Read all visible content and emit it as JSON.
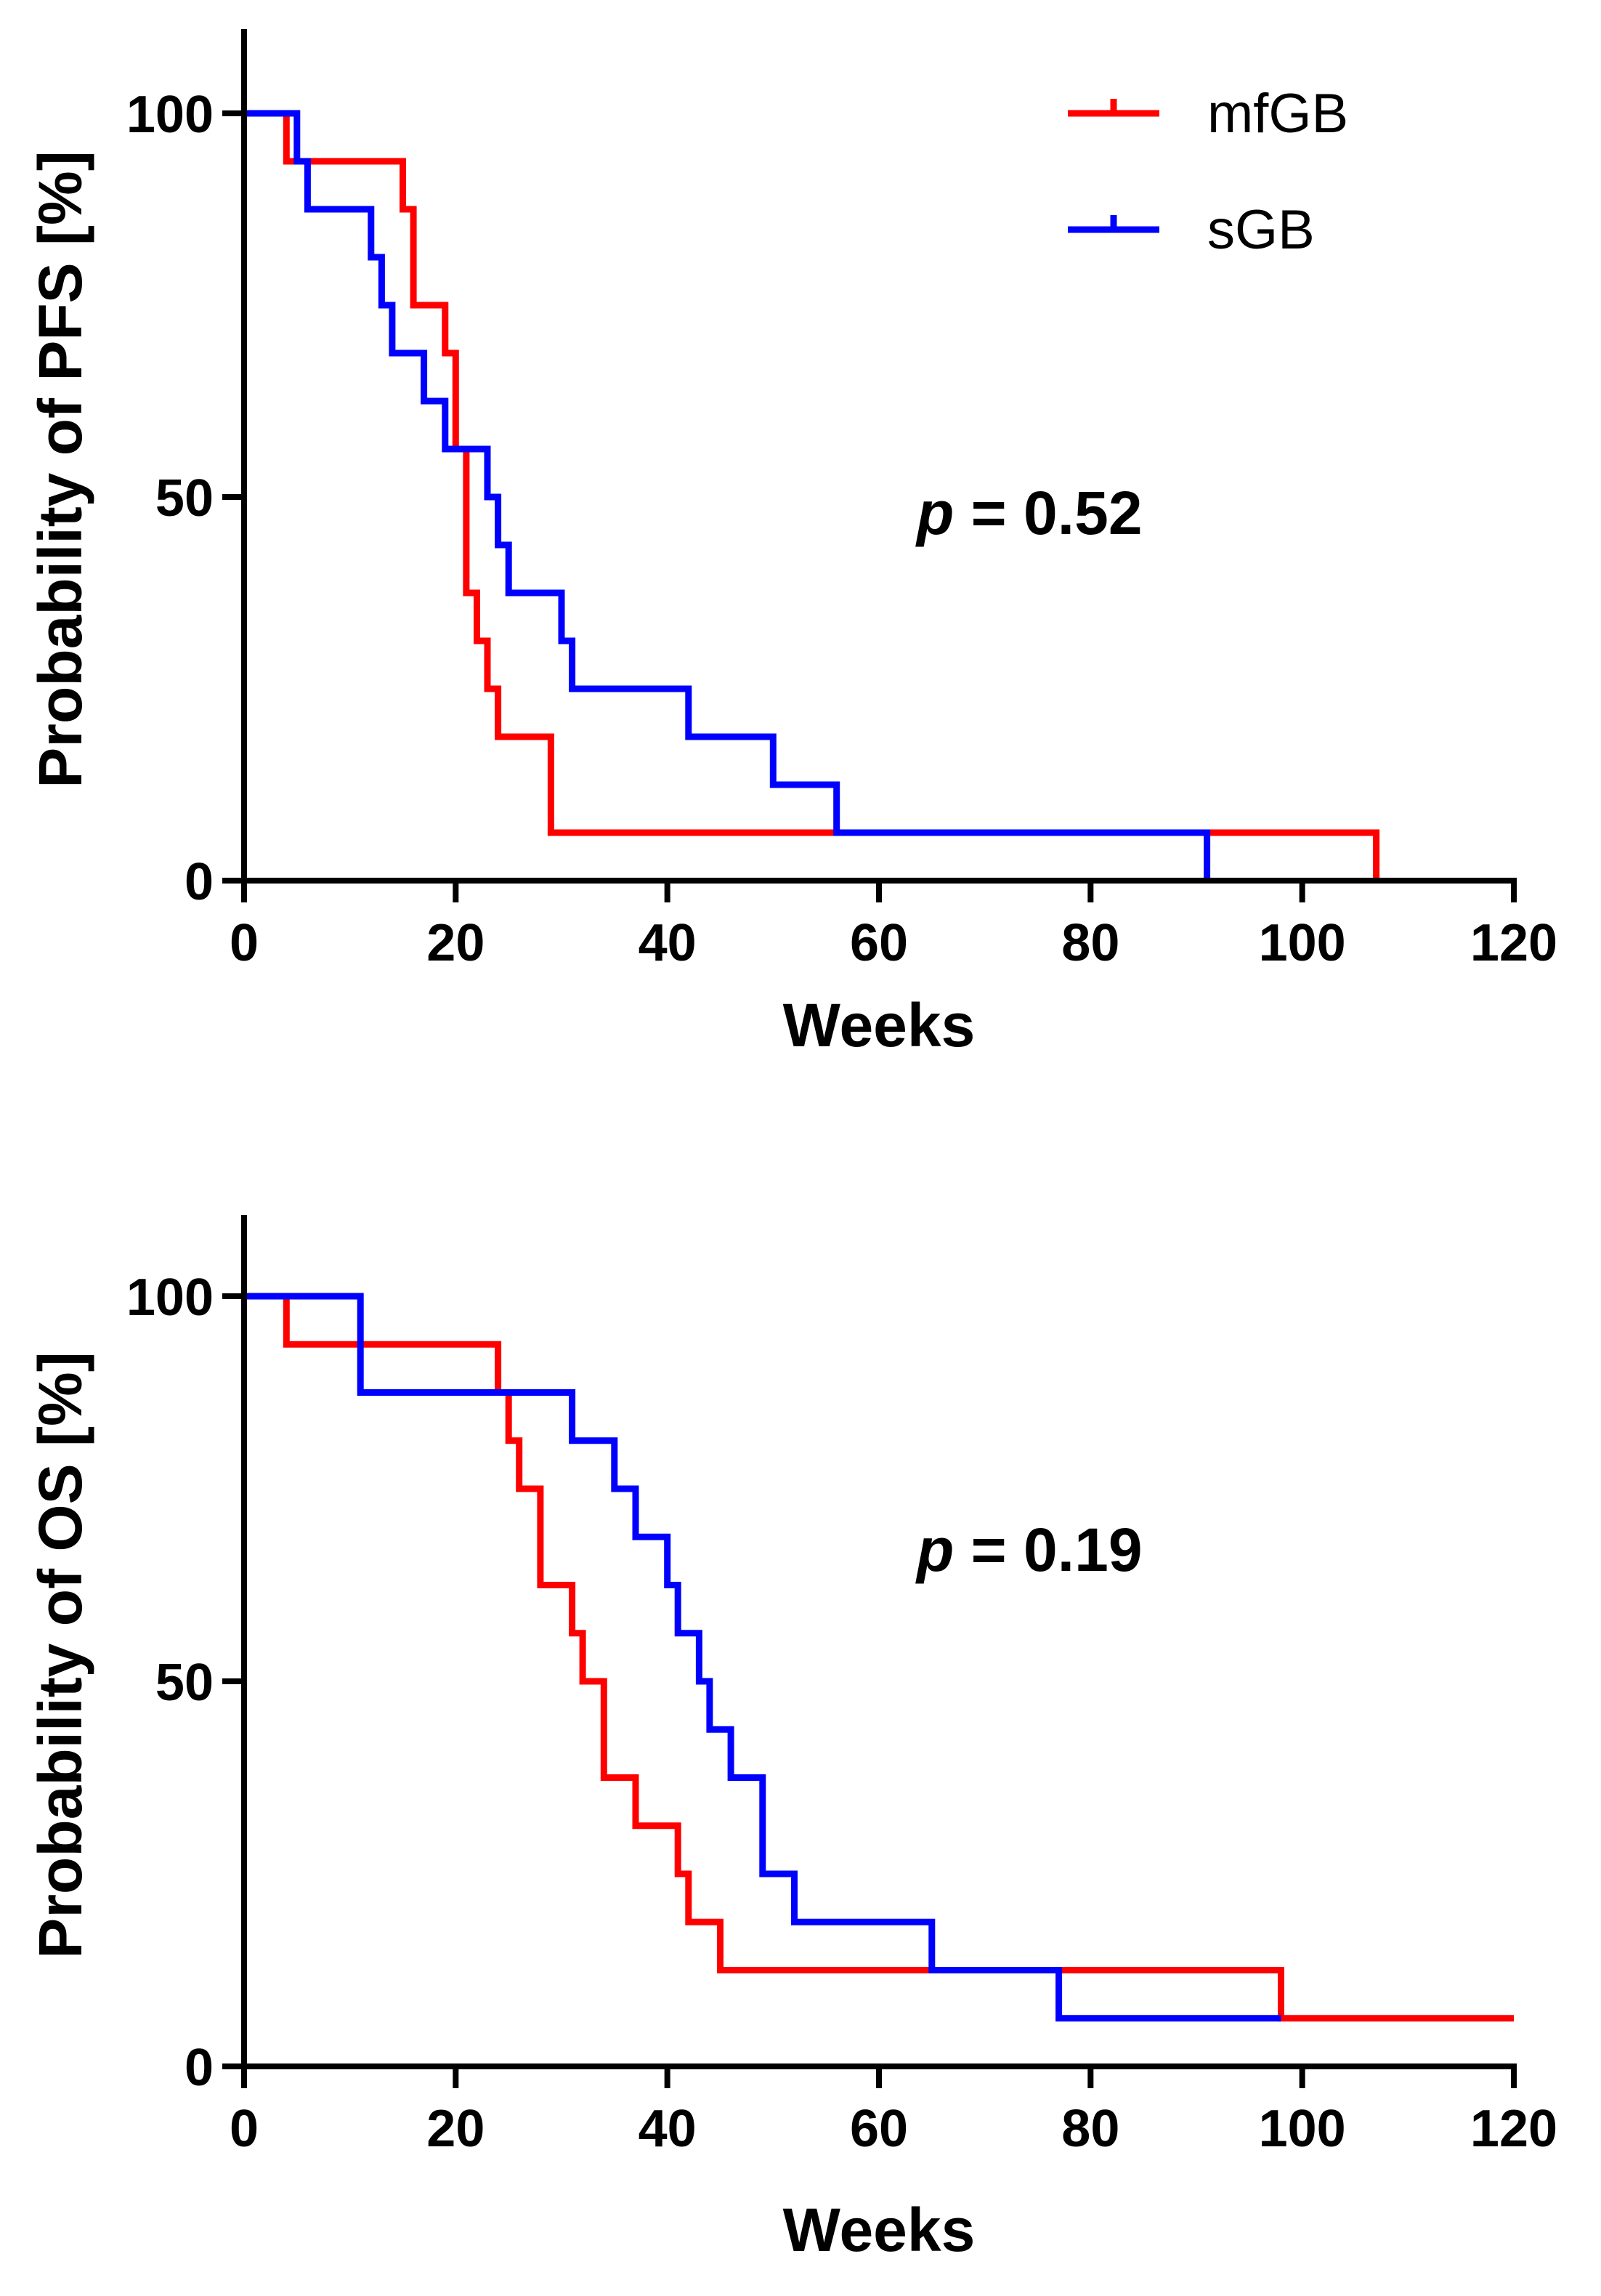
{
  "chart_data": [
    {
      "type": "line",
      "subtype": "kaplan-meier-step",
      "xlabel": "Weeks",
      "ylabel": "Probability of PFS [%]",
      "xlim": [
        0,
        120
      ],
      "ylim": [
        0,
        110
      ],
      "xticks": [
        0,
        20,
        40,
        60,
        80,
        100,
        120
      ],
      "yticks": [
        0,
        50,
        100
      ],
      "annotation": {
        "p": "p",
        "rest": " = 0.52"
      },
      "legend": {
        "position": "top-right",
        "entries": [
          "mfGB",
          "sGB"
        ]
      },
      "series": [
        {
          "name": "mfGB",
          "color": "#ff0000",
          "points": [
            [
              0,
              100
            ],
            [
              4,
              100
            ],
            [
              4,
              93.75
            ],
            [
              15,
              93.75
            ],
            [
              15,
              87.5
            ],
            [
              16,
              87.5
            ],
            [
              16,
              75
            ],
            [
              19,
              75
            ],
            [
              19,
              68.75
            ],
            [
              20,
              68.75
            ],
            [
              20,
              56.25
            ],
            [
              21,
              56.25
            ],
            [
              21,
              37.5
            ],
            [
              22,
              37.5
            ],
            [
              22,
              31.25
            ],
            [
              23,
              31.25
            ],
            [
              23,
              25
            ],
            [
              24,
              25
            ],
            [
              24,
              18.75
            ],
            [
              29,
              18.75
            ],
            [
              29,
              6.25
            ],
            [
              107,
              6.25
            ],
            [
              107,
              0
            ]
          ]
        },
        {
          "name": "sGB",
          "color": "#0000ff",
          "points": [
            [
              0,
              100
            ],
            [
              5,
              100
            ],
            [
              5,
              93.75
            ],
            [
              6,
              93.75
            ],
            [
              6,
              87.5
            ],
            [
              12,
              87.5
            ],
            [
              12,
              81.25
            ],
            [
              13,
              81.25
            ],
            [
              13,
              75
            ],
            [
              14,
              75
            ],
            [
              14,
              68.75
            ],
            [
              17,
              68.75
            ],
            [
              17,
              62.5
            ],
            [
              19,
              62.5
            ],
            [
              19,
              56.25
            ],
            [
              23,
              56.25
            ],
            [
              23,
              50
            ],
            [
              24,
              50
            ],
            [
              24,
              43.75
            ],
            [
              25,
              43.75
            ],
            [
              25,
              37.5
            ],
            [
              30,
              37.5
            ],
            [
              30,
              31.25
            ],
            [
              31,
              31.25
            ],
            [
              31,
              25
            ],
            [
              42,
              25
            ],
            [
              42,
              18.75
            ],
            [
              50,
              18.75
            ],
            [
              50,
              12.5
            ],
            [
              56,
              12.5
            ],
            [
              56,
              6.25
            ],
            [
              91,
              6.25
            ],
            [
              91,
              0
            ]
          ]
        }
      ]
    },
    {
      "type": "line",
      "subtype": "kaplan-meier-step",
      "xlabel": "Weeks",
      "ylabel": "Probability of OS [%]",
      "xlim": [
        0,
        120
      ],
      "ylim": [
        0,
        110
      ],
      "xticks": [
        0,
        20,
        40,
        60,
        80,
        100,
        120
      ],
      "yticks": [
        0,
        50,
        100
      ],
      "annotation": {
        "p": "p",
        "rest": " = 0.19"
      },
      "series": [
        {
          "name": "mfGB",
          "color": "#ff0000",
          "points": [
            [
              0,
              100
            ],
            [
              4,
              100
            ],
            [
              4,
              93.75
            ],
            [
              24,
              93.75
            ],
            [
              24,
              87.5
            ],
            [
              25,
              87.5
            ],
            [
              25,
              81.25
            ],
            [
              26,
              81.25
            ],
            [
              26,
              75
            ],
            [
              28,
              75
            ],
            [
              28,
              62.5
            ],
            [
              31,
              62.5
            ],
            [
              31,
              56.25
            ],
            [
              32,
              56.25
            ],
            [
              32,
              50
            ],
            [
              34,
              50
            ],
            [
              34,
              37.5
            ],
            [
              37,
              37.5
            ],
            [
              37,
              31.25
            ],
            [
              41,
              31.25
            ],
            [
              41,
              25
            ],
            [
              42,
              25
            ],
            [
              42,
              18.75
            ],
            [
              45,
              18.75
            ],
            [
              45,
              12.5
            ],
            [
              98,
              12.5
            ],
            [
              98,
              6.25
            ],
            [
              120,
              6.25
            ]
          ]
        },
        {
          "name": "sGB",
          "color": "#0000ff",
          "points": [
            [
              0,
              100
            ],
            [
              11,
              100
            ],
            [
              11,
              87.5
            ],
            [
              31,
              87.5
            ],
            [
              31,
              81.25
            ],
            [
              35,
              81.25
            ],
            [
              35,
              75
            ],
            [
              37,
              75
            ],
            [
              37,
              68.75
            ],
            [
              40,
              68.75
            ],
            [
              40,
              62.5
            ],
            [
              41,
              62.5
            ],
            [
              41,
              56.25
            ],
            [
              43,
              56.25
            ],
            [
              43,
              50
            ],
            [
              44,
              50
            ],
            [
              44,
              43.75
            ],
            [
              46,
              43.75
            ],
            [
              46,
              37.5
            ],
            [
              49,
              37.5
            ],
            [
              49,
              25
            ],
            [
              52,
              25
            ],
            [
              52,
              18.75
            ],
            [
              65,
              18.75
            ],
            [
              65,
              12.5
            ],
            [
              77,
              12.5
            ],
            [
              77,
              6.25
            ],
            [
              98,
              6.25
            ]
          ]
        }
      ]
    }
  ]
}
